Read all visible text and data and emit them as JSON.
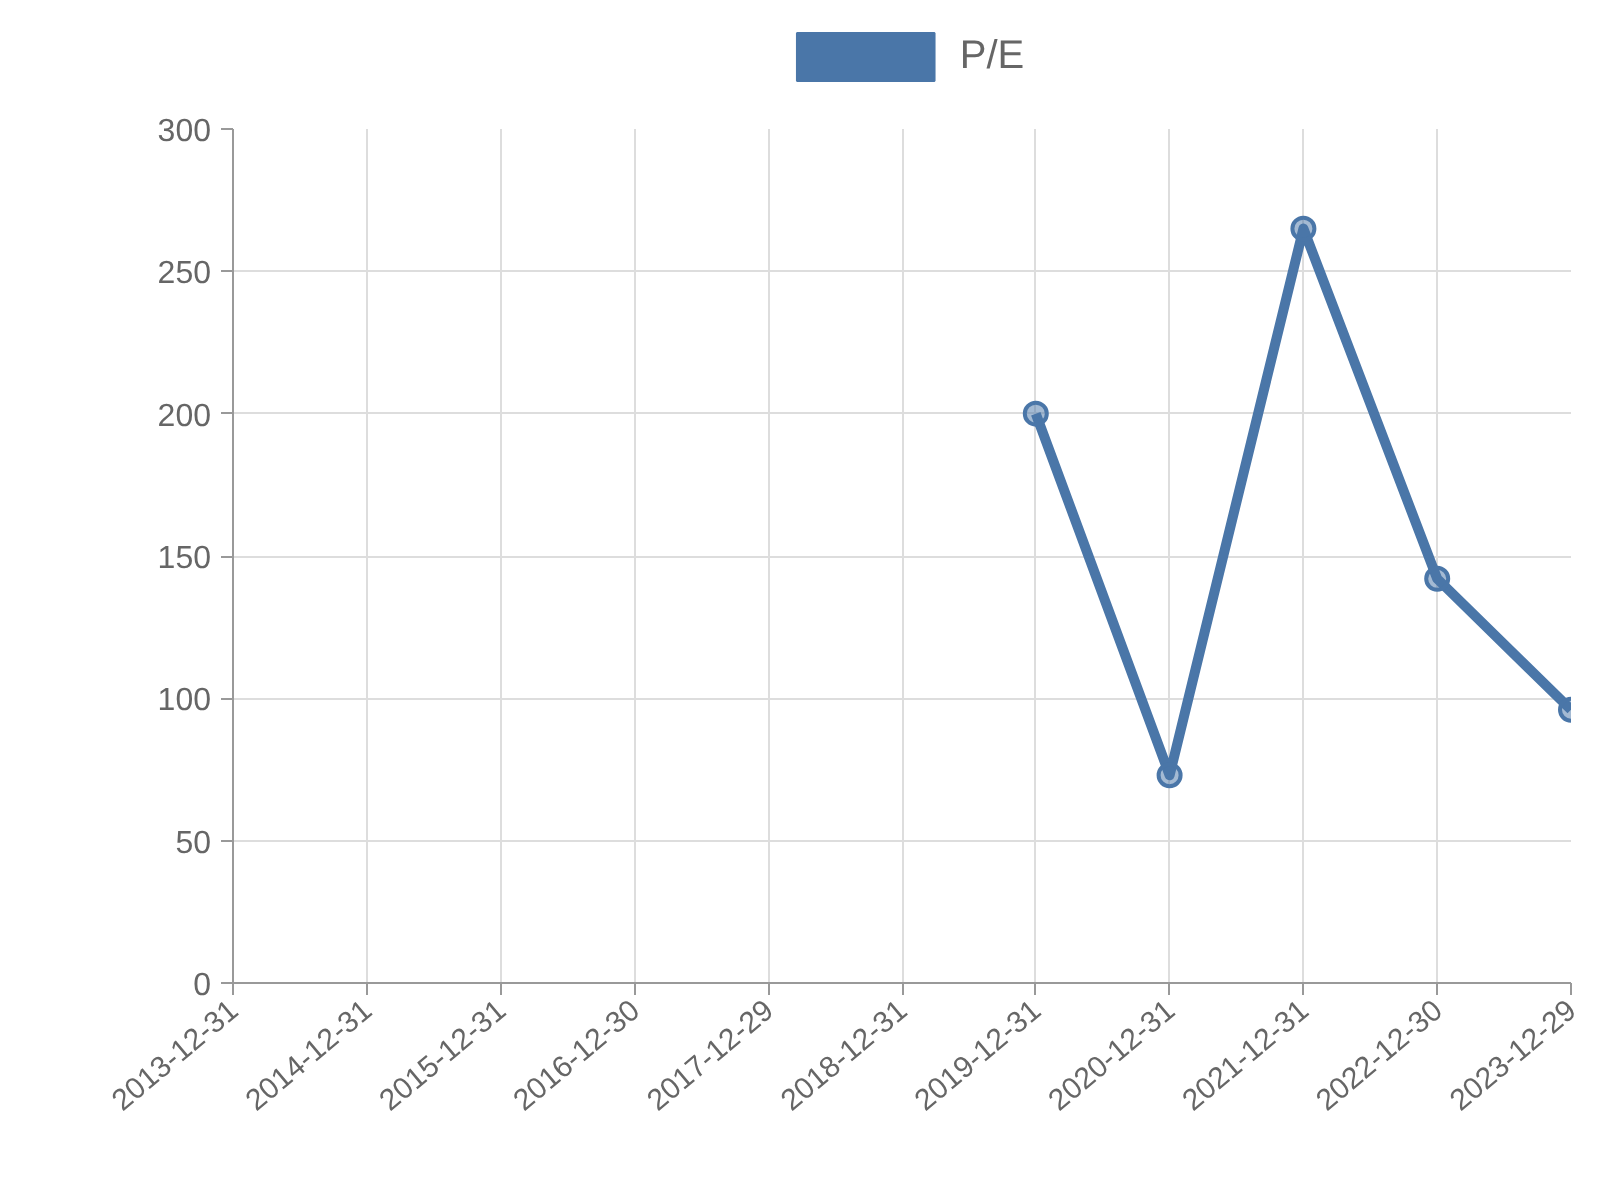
{
  "chart_data": {
    "type": "line",
    "categories": [
      "2013-12-31",
      "2014-12-31",
      "2015-12-31",
      "2016-12-30",
      "2017-12-29",
      "2018-12-31",
      "2019-12-31",
      "2020-12-31",
      "2021-12-31",
      "2022-12-30",
      "2023-12-29"
    ],
    "series": [
      {
        "name": "P/E",
        "color": "#4a76a8",
        "values": [
          null,
          null,
          null,
          null,
          null,
          null,
          200,
          73,
          265,
          142,
          96
        ]
      }
    ],
    "ylim": [
      0,
      300
    ],
    "yticks": [
      0,
      50,
      100,
      150,
      200,
      250,
      300
    ],
    "grid": true,
    "legend": "top",
    "marker": "circle",
    "line_style": "solid"
  }
}
